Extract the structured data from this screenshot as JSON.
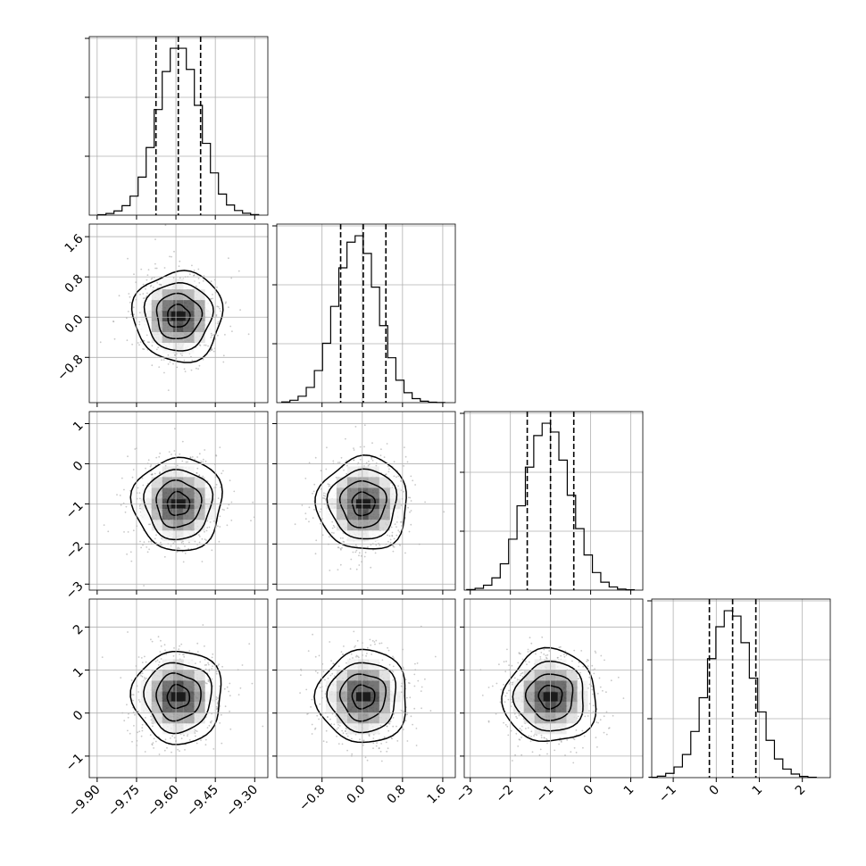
{
  "chart_data": {
    "type": "corner",
    "description_free": true,
    "colors": {
      "line": "#000000",
      "grid": "#b0b0b0",
      "scatter": "#9a9a9a",
      "background": "#ffffff"
    },
    "grid": true,
    "parameters": [
      {
        "mean": -9.591,
        "std": 0.085,
        "quantiles": [
          -9.676,
          -9.591,
          -9.506
        ],
        "range": [
          -9.93,
          -9.25
        ],
        "ticks": [
          -9.9,
          -9.75,
          -9.6,
          -9.45,
          -9.3
        ],
        "tick_labels": [
          "−9.90",
          "−9.75",
          "−9.60",
          "−9.45",
          "−9.30"
        ]
      },
      {
        "mean": 0.02,
        "std": 0.45,
        "quantiles": [
          -0.43,
          0.02,
          0.47
        ],
        "range": [
          -1.7,
          1.85
        ],
        "ticks": [
          -0.8,
          0.0,
          0.8,
          1.6
        ],
        "tick_labels": [
          "−0.8",
          "0.0",
          "0.8",
          "1.6"
        ]
      },
      {
        "mean": -1.0,
        "std": 0.58,
        "quantiles": [
          -1.58,
          -1.0,
          -0.42
        ],
        "range": [
          -3.15,
          1.3
        ],
        "ticks": [
          -3,
          -2,
          -1,
          0,
          1
        ],
        "tick_labels": [
          "−3",
          "−2",
          "−1",
          "0",
          "1"
        ]
      },
      {
        "mean": 0.38,
        "std": 0.54,
        "quantiles": [
          -0.16,
          0.38,
          0.92
        ],
        "range": [
          -1.5,
          2.65
        ],
        "ticks": [
          -1,
          0,
          1,
          2
        ],
        "tick_labels": [
          "−1",
          "0",
          "1",
          "2"
        ]
      }
    ],
    "histogram_bins": 20,
    "histogram_counts": [
      [
        2,
        8,
        20,
        45,
        90,
        180,
        320,
        500,
        680,
        790,
        790,
        690,
        520,
        340,
        200,
        100,
        48,
        22,
        9,
        3
      ],
      [
        4,
        15,
        40,
        95,
        200,
        370,
        600,
        840,
        1000,
        1040,
        930,
        720,
        480,
        280,
        140,
        62,
        25,
        9,
        3,
        1
      ],
      [
        3,
        10,
        28,
        70,
        150,
        290,
        480,
        700,
        880,
        950,
        900,
        740,
        540,
        350,
        200,
        100,
        45,
        18,
        6,
        2
      ],
      [
        2,
        8,
        24,
        60,
        130,
        260,
        450,
        670,
        850,
        940,
        910,
        760,
        560,
        370,
        210,
        105,
        48,
        20,
        7,
        2
      ]
    ],
    "contour_levels_sigma": [
      0.5,
      1.0,
      1.5,
      2.0
    ],
    "pairs": [
      {
        "x": 0,
        "y": 1,
        "correlation": 0.0
      },
      {
        "x": 0,
        "y": 2,
        "correlation": 0.0
      },
      {
        "x": 1,
        "y": 2,
        "correlation": 0.0
      },
      {
        "x": 0,
        "y": 3,
        "correlation": 0.0
      },
      {
        "x": 1,
        "y": 3,
        "correlation": 0.0
      },
      {
        "x": 2,
        "y": 3,
        "correlation": 0.0
      }
    ],
    "scatter_points_per_panel": 700
  }
}
